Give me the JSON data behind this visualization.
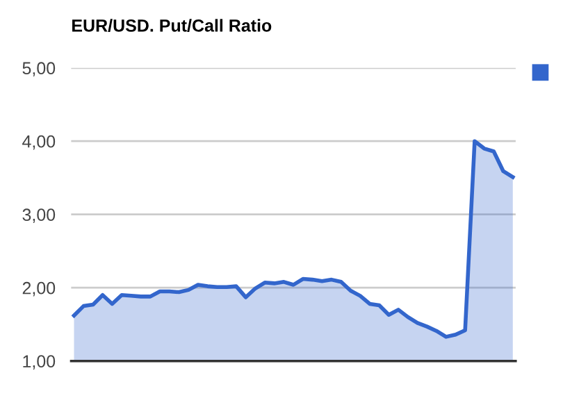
{
  "chart_data": {
    "type": "area",
    "title": "EUR/USD. Put/Call Ratio",
    "categories": [
      null,
      null,
      null,
      null,
      null,
      null,
      null,
      null,
      null,
      null,
      null,
      null,
      null,
      null,
      null,
      null,
      null,
      null,
      null,
      null,
      null,
      null,
      null,
      null,
      null,
      null,
      null,
      null,
      null,
      null,
      null,
      null,
      null,
      null,
      null,
      null,
      null,
      null,
      null,
      null,
      null,
      null,
      null,
      null,
      null,
      null,
      null
    ],
    "series": [
      {
        "color": "#3366cc",
        "values": [
          1.62,
          1.75,
          1.77,
          1.9,
          1.78,
          1.9,
          1.89,
          1.88,
          1.88,
          1.95,
          1.95,
          1.94,
          1.97,
          2.04,
          2.02,
          2.01,
          2.01,
          2.02,
          1.87,
          1.99,
          2.07,
          2.06,
          2.08,
          2.04,
          2.12,
          2.11,
          2.09,
          2.11,
          2.08,
          1.96,
          1.89,
          1.78,
          1.76,
          1.63,
          1.7,
          1.6,
          1.52,
          1.47,
          1.41,
          1.33,
          1.36,
          1.42,
          4.0,
          3.9,
          3.86,
          3.59,
          3.51
        ]
      }
    ],
    "ylim": [
      1,
      5
    ],
    "yticks": [
      {
        "value": 1,
        "label": "1,00"
      },
      {
        "value": 2,
        "label": "2,00"
      },
      {
        "value": 3,
        "label": "3,00"
      },
      {
        "value": 4,
        "label": "4,00"
      },
      {
        "value": 5,
        "label": "5,00"
      }
    ],
    "grid": "y"
  }
}
